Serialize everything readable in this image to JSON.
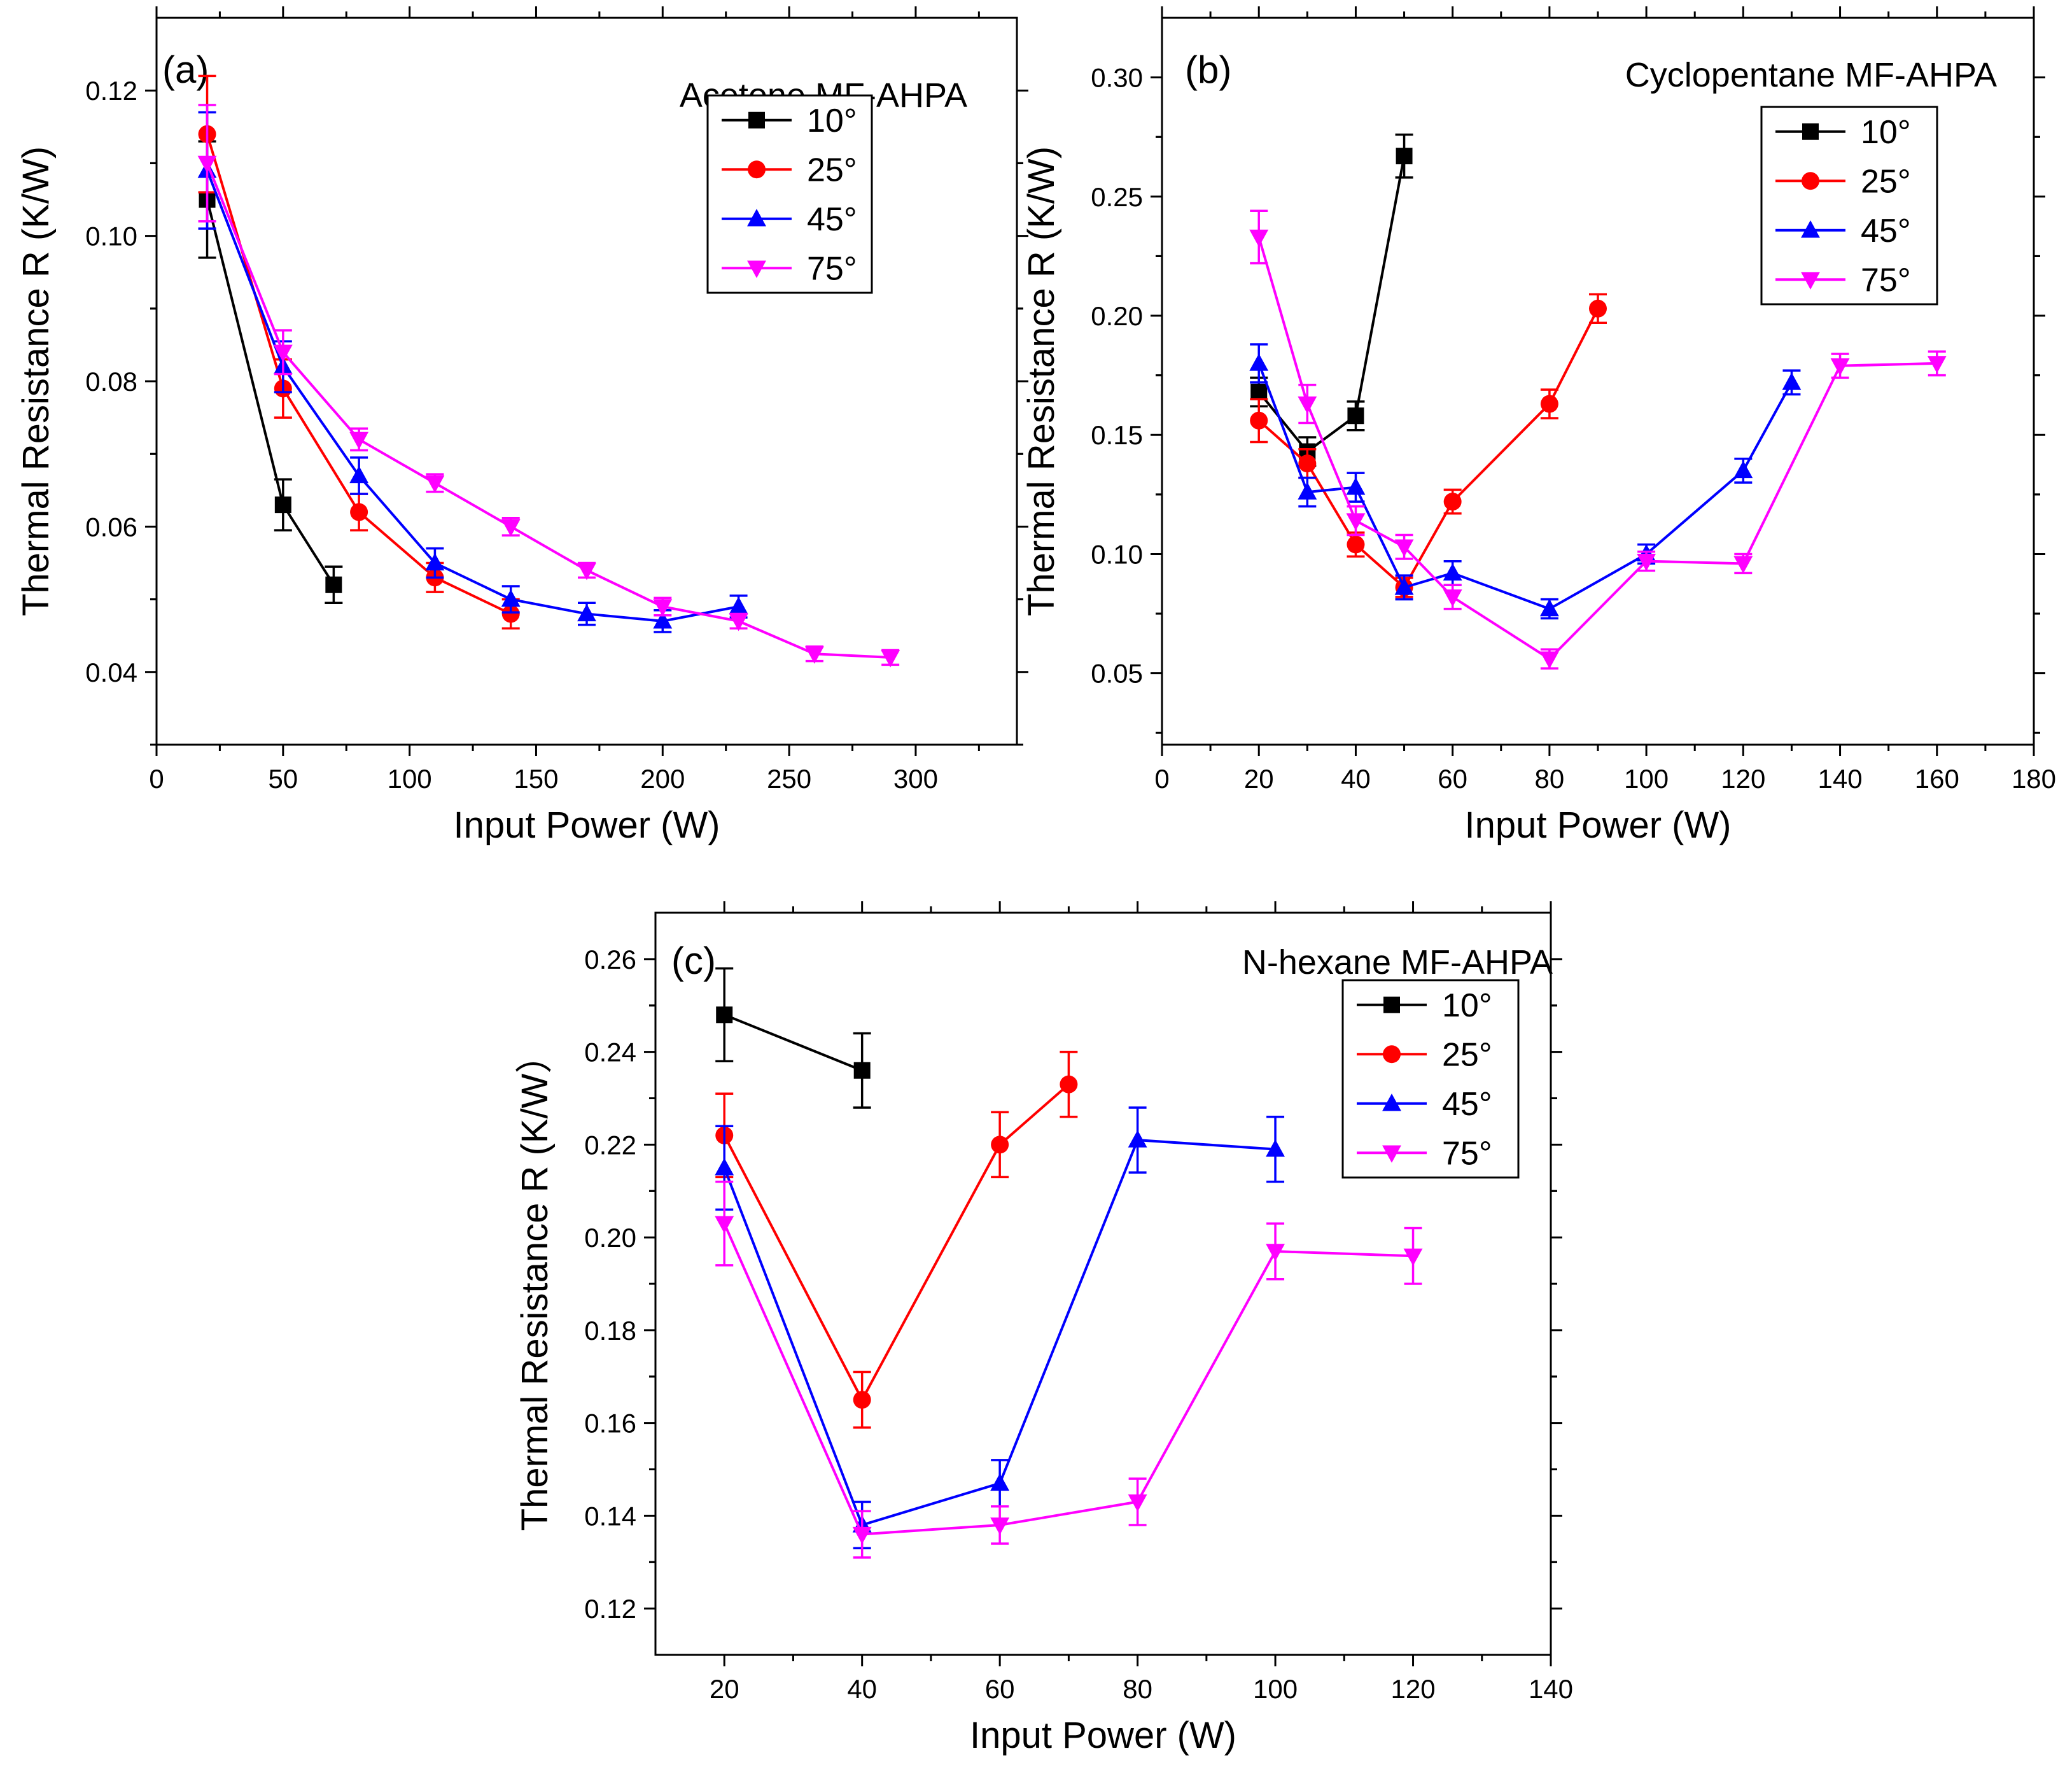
{
  "chart_data": [
    {
      "type": "line",
      "panel_label": "(a)",
      "title": "Acetone MF-AHPA",
      "xlabel": "Input Power (W)",
      "ylabel": "Thermal Resistance R (K/W)",
      "xlim": [
        0,
        340
      ],
      "ylim": [
        0.03,
        0.13
      ],
      "xticks": [
        0,
        50,
        100,
        150,
        200,
        250,
        300
      ],
      "yticks": [
        0.04,
        0.06,
        0.08,
        0.1,
        0.12
      ],
      "ytick_decimals": 2,
      "legend_position": "top-right",
      "series": [
        {
          "name": "10°",
          "color": "#000000",
          "marker": "square",
          "x": [
            20,
            50,
            70
          ],
          "y": [
            0.105,
            0.063,
            0.052
          ],
          "err": [
            0.008,
            0.0035,
            0.0025
          ]
        },
        {
          "name": "25°",
          "color": "#ff0000",
          "marker": "circle",
          "x": [
            20,
            50,
            80,
            110,
            140
          ],
          "y": [
            0.114,
            0.079,
            0.062,
            0.053,
            0.048
          ],
          "err": [
            0.008,
            0.004,
            0.0025,
            0.002,
            0.002
          ]
        },
        {
          "name": "45°",
          "color": "#0000ff",
          "marker": "triangle-up",
          "x": [
            20,
            50,
            80,
            110,
            140,
            170,
            200,
            230
          ],
          "y": [
            0.109,
            0.082,
            0.067,
            0.055,
            0.05,
            0.048,
            0.047,
            0.049
          ],
          "err": [
            0.008,
            0.0035,
            0.0025,
            0.002,
            0.0018,
            0.0015,
            0.0015,
            0.0015
          ]
        },
        {
          "name": "75°",
          "color": "#ff00ff",
          "marker": "triangle-down",
          "x": [
            20,
            50,
            80,
            110,
            140,
            170,
            200,
            230,
            260,
            290
          ],
          "y": [
            0.11,
            0.084,
            0.072,
            0.066,
            0.06,
            0.054,
            0.049,
            0.047,
            0.0425,
            0.042
          ],
          "err": [
            0.008,
            0.003,
            0.0015,
            0.0012,
            0.0012,
            0.001,
            0.0012,
            0.001,
            0.001,
            0.001
          ]
        }
      ]
    },
    {
      "type": "line",
      "panel_label": "(b)",
      "title": "Cyclopentane MF-AHPA",
      "xlabel": "Input Power (W)",
      "ylabel": "Thermal Resistance R (K/W)",
      "xlim": [
        0,
        180
      ],
      "ylim": [
        0.02,
        0.325
      ],
      "xticks": [
        0,
        20,
        40,
        60,
        80,
        100,
        120,
        140,
        160,
        180
      ],
      "yticks": [
        0.05,
        0.1,
        0.15,
        0.2,
        0.25,
        0.3
      ],
      "ytick_decimals": 2,
      "legend_position": "top-right",
      "series": [
        {
          "name": "10°",
          "color": "#000000",
          "marker": "square",
          "x": [
            20,
            30,
            40,
            50
          ],
          "y": [
            0.168,
            0.143,
            0.158,
            0.267
          ],
          "err": [
            0.006,
            0.006,
            0.006,
            0.009
          ]
        },
        {
          "name": "25°",
          "color": "#ff0000",
          "marker": "circle",
          "x": [
            20,
            30,
            40,
            50,
            60,
            80,
            90
          ],
          "y": [
            0.156,
            0.138,
            0.104,
            0.086,
            0.122,
            0.163,
            0.203
          ],
          "err": [
            0.009,
            0.006,
            0.005,
            0.004,
            0.005,
            0.006,
            0.006
          ]
        },
        {
          "name": "45°",
          "color": "#0000ff",
          "marker": "triangle-up",
          "x": [
            20,
            30,
            40,
            50,
            60,
            80,
            100,
            120,
            130
          ],
          "y": [
            0.18,
            0.126,
            0.128,
            0.086,
            0.092,
            0.077,
            0.1,
            0.135,
            0.172
          ],
          "err": [
            0.008,
            0.006,
            0.006,
            0.005,
            0.005,
            0.004,
            0.004,
            0.005,
            0.005
          ]
        },
        {
          "name": "75°",
          "color": "#ff00ff",
          "marker": "triangle-down",
          "x": [
            20,
            30,
            40,
            50,
            60,
            80,
            100,
            120,
            140,
            160
          ],
          "y": [
            0.233,
            0.163,
            0.114,
            0.103,
            0.082,
            0.056,
            0.097,
            0.096,
            0.179,
            0.18
          ],
          "err": [
            0.011,
            0.008,
            0.006,
            0.005,
            0.005,
            0.004,
            0.004,
            0.004,
            0.005,
            0.005
          ]
        }
      ]
    },
    {
      "type": "line",
      "panel_label": "(c)",
      "title": "N-hexane MF-AHPA",
      "xlabel": "Input Power (W)",
      "ylabel": "Thermal Resistance R (K/W）",
      "xlim": [
        10,
        140
      ],
      "ylim": [
        0.11,
        0.27
      ],
      "xticks": [
        20,
        40,
        60,
        80,
        100,
        120,
        140
      ],
      "yticks": [
        0.12,
        0.14,
        0.16,
        0.18,
        0.2,
        0.22,
        0.24,
        0.26
      ],
      "ytick_decimals": 2,
      "legend_position": "top-right",
      "series": [
        {
          "name": "10°",
          "color": "#000000",
          "marker": "square",
          "x": [
            20,
            40
          ],
          "y": [
            0.248,
            0.236
          ],
          "err": [
            0.01,
            0.008
          ]
        },
        {
          "name": "25°",
          "color": "#ff0000",
          "marker": "circle",
          "x": [
            20,
            40,
            60,
            70
          ],
          "y": [
            0.222,
            0.165,
            0.22,
            0.233
          ],
          "err": [
            0.009,
            0.006,
            0.007,
            0.007
          ]
        },
        {
          "name": "45°",
          "color": "#0000ff",
          "marker": "triangle-up",
          "x": [
            20,
            40,
            60,
            80,
            100
          ],
          "y": [
            0.215,
            0.138,
            0.147,
            0.221,
            0.219
          ],
          "err": [
            0.009,
            0.005,
            0.005,
            0.007,
            0.007
          ]
        },
        {
          "name": "75°",
          "color": "#ff00ff",
          "marker": "triangle-down",
          "x": [
            20,
            40,
            60,
            80,
            100,
            120
          ],
          "y": [
            0.203,
            0.136,
            0.138,
            0.143,
            0.197,
            0.196
          ],
          "err": [
            0.009,
            0.005,
            0.004,
            0.005,
            0.006,
            0.006
          ]
        }
      ]
    }
  ]
}
